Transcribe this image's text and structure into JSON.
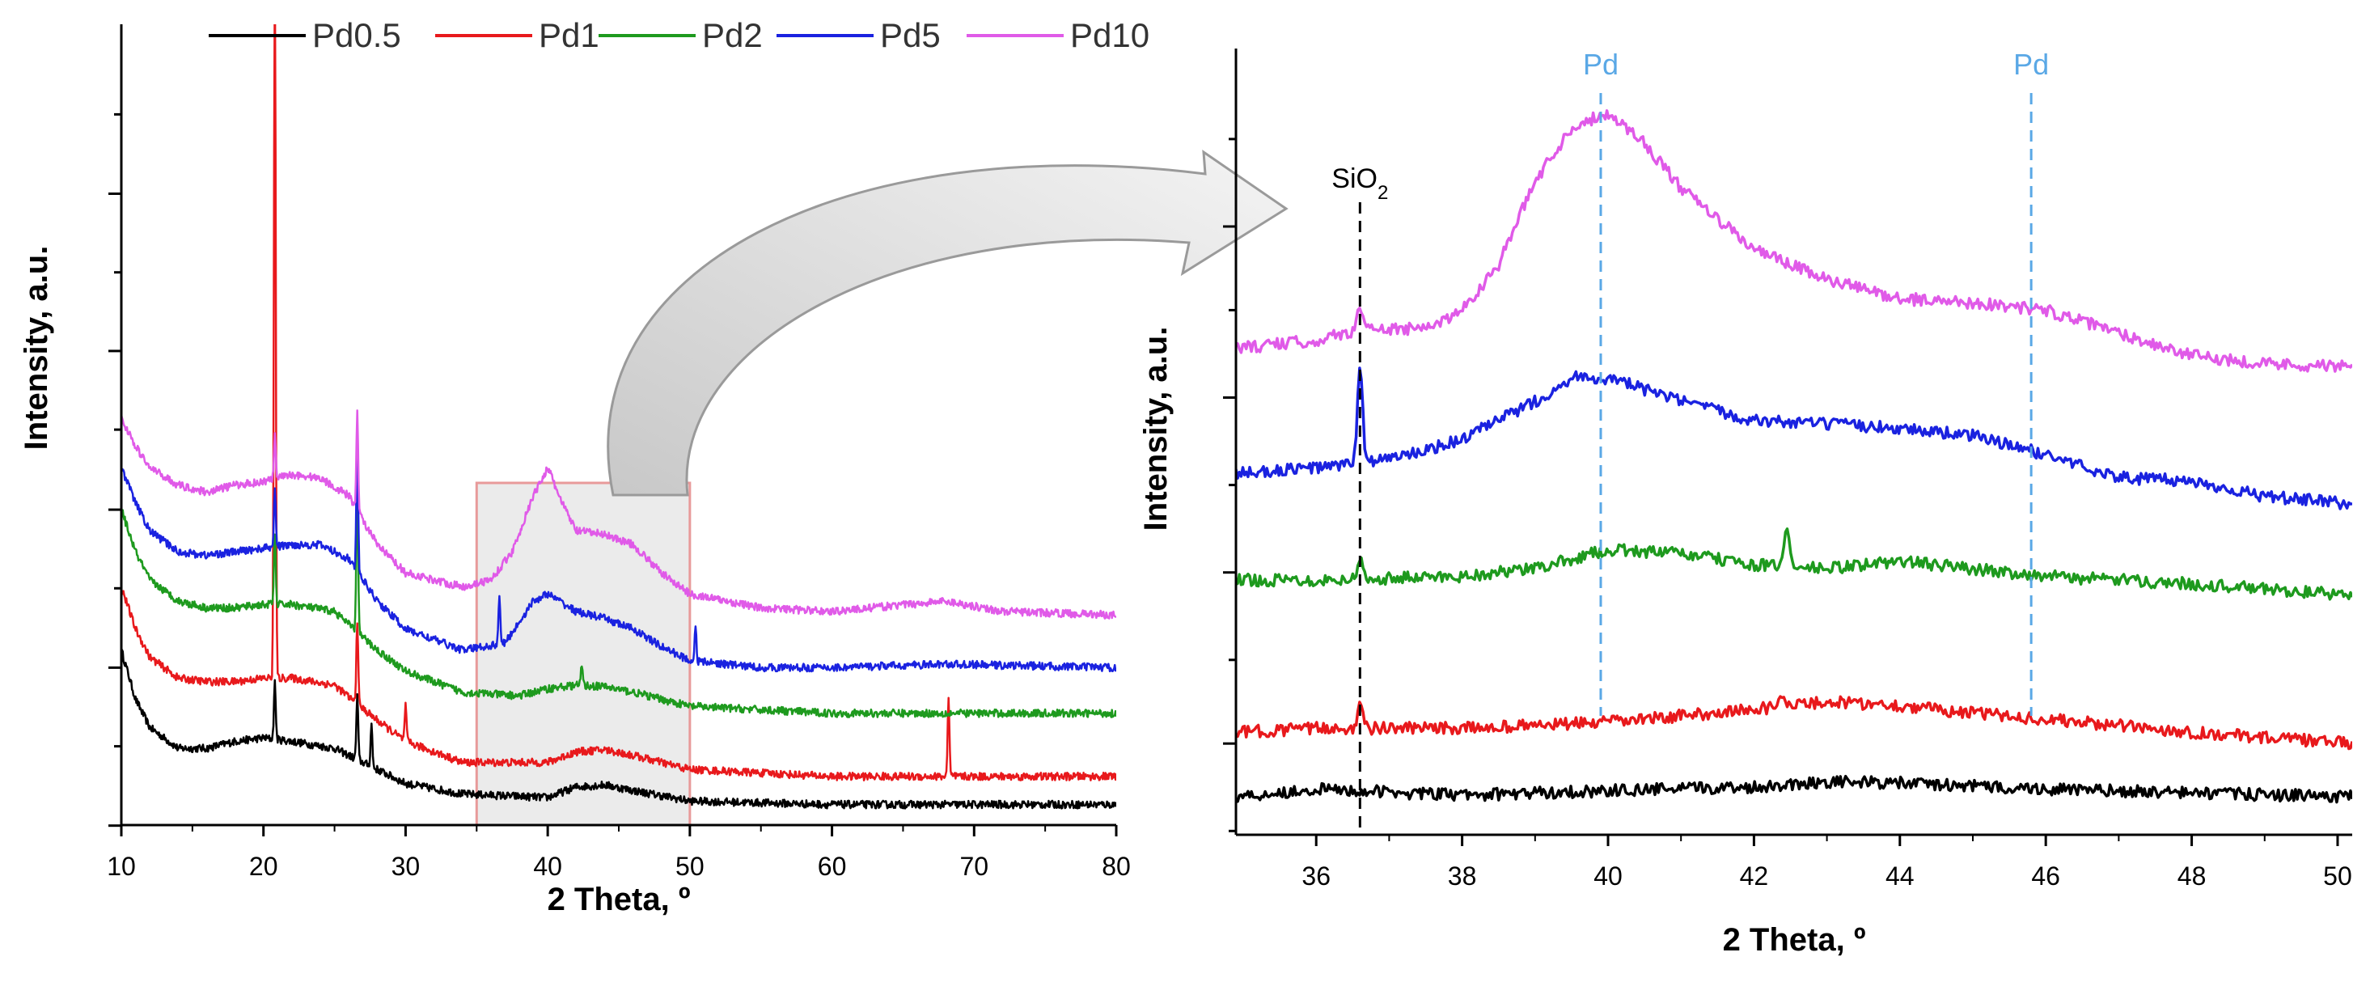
{
  "chart_data": [
    {
      "type": "line",
      "panel": "left",
      "xlabel": "2 Theta, º",
      "ylabel": "Intensity, a.u.",
      "xlim": [
        10,
        80
      ],
      "ylim": [
        0,
        100
      ],
      "xticks": [
        "10",
        "20",
        "30",
        "40",
        "50",
        "60",
        "70",
        "80"
      ],
      "y_tick_labels": "none",
      "legend": {
        "position": "top",
        "entries": [
          "Pd0.5",
          "Pd1",
          "Pd2",
          "Pd5",
          "Pd10"
        ]
      },
      "highlight_region": {
        "x": [
          35,
          50
        ],
        "description": "zoom region"
      },
      "series": [
        {
          "name": "Pd0.5",
          "color": "#000000",
          "baseline": 2,
          "points": [
            [
              10,
              24
            ],
            [
              11,
              17
            ],
            [
              12,
              13
            ],
            [
              14,
              10
            ],
            [
              16,
              10
            ],
            [
              18,
              11
            ],
            [
              20,
              11.5
            ],
            [
              22,
              11
            ],
            [
              25,
              10
            ],
            [
              28,
              7
            ],
            [
              30,
              5
            ],
            [
              34,
              3.5
            ],
            [
              40,
              3
            ],
            [
              42,
              4.5
            ],
            [
              44,
              4.8
            ],
            [
              46,
              4
            ],
            [
              50,
              2.5
            ],
            [
              60,
              2
            ],
            [
              80,
              2
            ]
          ],
          "peaks": [
            [
              20.8,
              8
            ],
            [
              26.6,
              9
            ],
            [
              27.6,
              6
            ]
          ]
        },
        {
          "name": "Pd1",
          "color": "#e8191c",
          "baseline": 6,
          "points": [
            [
              10,
              33
            ],
            [
              11,
              27
            ],
            [
              12,
              23
            ],
            [
              14,
              20
            ],
            [
              16,
              19.5
            ],
            [
              18,
              19.5
            ],
            [
              20,
              20
            ],
            [
              22,
              20
            ],
            [
              25,
              19
            ],
            [
              28,
              14
            ],
            [
              30,
              11
            ],
            [
              34,
              8
            ],
            [
              40,
              8
            ],
            [
              42,
              9.5
            ],
            [
              44,
              9.8
            ],
            [
              46,
              9
            ],
            [
              50,
              7
            ],
            [
              60,
              6
            ],
            [
              80,
              6
            ]
          ],
          "peaks": [
            [
              20.8,
              102
            ],
            [
              26.6,
              12
            ],
            [
              30,
              5
            ],
            [
              68.2,
              11
            ]
          ]
        },
        {
          "name": "Pd2",
          "color": "#1e9a1e",
          "baseline": 15,
          "points": [
            [
              10,
              44
            ],
            [
              11,
              38
            ],
            [
              12,
              34
            ],
            [
              14,
              31
            ],
            [
              16,
              30
            ],
            [
              18,
              30
            ],
            [
              20,
              30.5
            ],
            [
              22,
              30.5
            ],
            [
              25,
              29.5
            ],
            [
              28,
              24
            ],
            [
              30,
              21
            ],
            [
              34,
              18
            ],
            [
              38,
              17.5
            ],
            [
              40,
              18.5
            ],
            [
              42,
              19
            ],
            [
              44,
              18.8
            ],
            [
              46,
              18
            ],
            [
              50,
              16
            ],
            [
              60,
              15
            ],
            [
              80,
              15
            ]
          ],
          "peaks": [
            [
              20.8,
              10
            ],
            [
              26.6,
              22
            ],
            [
              42.4,
              3
            ]
          ]
        },
        {
          "name": "Pd5",
          "color": "#1a22e0",
          "baseline": 21,
          "points": [
            [
              10,
              50
            ],
            [
              11,
              45
            ],
            [
              12,
              41
            ],
            [
              14,
              38
            ],
            [
              16,
              37.5
            ],
            [
              18,
              38
            ],
            [
              20,
              38.5
            ],
            [
              22,
              39
            ],
            [
              24,
              39
            ],
            [
              26,
              37
            ],
            [
              28,
              31
            ],
            [
              30,
              27
            ],
            [
              34,
              24
            ],
            [
              37,
              25
            ],
            [
              39,
              31
            ],
            [
              40,
              32
            ],
            [
              42,
              29.5
            ],
            [
              44,
              28.5
            ],
            [
              46,
              27
            ],
            [
              48,
              24.5
            ],
            [
              50,
              22.5
            ],
            [
              55,
              21.5
            ],
            [
              60,
              21.5
            ],
            [
              68,
              22
            ],
            [
              80,
              21.5
            ]
          ],
          "peaks": [
            [
              20.8,
              8
            ],
            [
              26.6,
              18
            ],
            [
              36.6,
              7
            ],
            [
              50.4,
              5
            ]
          ]
        },
        {
          "name": "Pd10",
          "color": "#e05ae8",
          "baseline": 29,
          "points": [
            [
              10,
              57
            ],
            [
              11,
              53
            ],
            [
              12,
              50
            ],
            [
              14,
              47.5
            ],
            [
              16,
              46.5
            ],
            [
              18,
              47.5
            ],
            [
              20,
              48
            ],
            [
              22,
              49
            ],
            [
              24,
              48.5
            ],
            [
              26,
              46
            ],
            [
              28,
              39
            ],
            [
              30,
              35
            ],
            [
              34,
              33
            ],
            [
              36,
              34
            ],
            [
              37.5,
              38
            ],
            [
              39,
              46
            ],
            [
              40,
              50
            ],
            [
              41,
              45
            ],
            [
              42,
              41
            ],
            [
              44,
              40.5
            ],
            [
              46,
              39
            ],
            [
              48,
              35
            ],
            [
              50,
              32
            ],
            [
              55,
              30
            ],
            [
              60,
              29.5
            ],
            [
              68,
              31
            ],
            [
              72,
              29.5
            ],
            [
              80,
              29
            ]
          ],
          "peaks": [
            [
              20.8,
              6
            ],
            [
              26.6,
              14
            ]
          ]
        }
      ]
    },
    {
      "type": "line",
      "panel": "right",
      "xlabel": "2 Theta, º",
      "ylabel": "Intensity, a.u.",
      "xlim": [
        34.9,
        50.2
      ],
      "ylim": [
        0,
        100
      ],
      "xticks": [
        "36",
        "38",
        "40",
        "42",
        "44",
        "46",
        "48",
        "50"
      ],
      "y_tick_labels": "none",
      "annotations": [
        {
          "label_parts": [
            "SiO",
            "2"
          ],
          "x": 36.6,
          "style": "black dashed vertical line"
        },
        {
          "label": "Pd",
          "x": 39.9,
          "style": "light blue dashed vertical line"
        },
        {
          "label": "Pd",
          "x": 45.8,
          "style": "light blue dashed vertical line"
        }
      ],
      "series": [
        {
          "name": "Pd0.5",
          "color": "#000000",
          "points": [
            [
              34.9,
              5
            ],
            [
              36,
              6
            ],
            [
              38,
              5.2
            ],
            [
              40,
              5.8
            ],
            [
              42,
              6.3
            ],
            [
              43,
              7
            ],
            [
              44,
              6.8
            ],
            [
              46,
              6
            ],
            [
              48,
              5.5
            ],
            [
              50.2,
              5
            ]
          ],
          "peaks": []
        },
        {
          "name": "Pd1",
          "color": "#e8191c",
          "points": [
            [
              34.9,
              13.5
            ],
            [
              36,
              14
            ],
            [
              38,
              14
            ],
            [
              40,
              14.8
            ],
            [
              42,
              16.5
            ],
            [
              43,
              17.5
            ],
            [
              44,
              17
            ],
            [
              45,
              16
            ],
            [
              46,
              15.2
            ],
            [
              48,
              13.5
            ],
            [
              50.2,
              12
            ]
          ],
          "peaks": [
            [
              36.6,
              3
            ],
            [
              42.4,
              2
            ]
          ]
        },
        {
          "name": "Pd2",
          "color": "#1e9a1e",
          "points": [
            [
              34.9,
              33.5
            ],
            [
              36,
              33.5
            ],
            [
              38,
              34
            ],
            [
              39,
              35
            ],
            [
              40,
              37.5
            ],
            [
              41,
              37
            ],
            [
              42,
              35.5
            ],
            [
              43,
              35
            ],
            [
              44,
              36
            ],
            [
              46,
              34
            ],
            [
              48,
              33
            ],
            [
              50.2,
              31.5
            ]
          ],
          "peaks": [
            [
              36.6,
              2.5
            ],
            [
              42.45,
              5
            ]
          ]
        },
        {
          "name": "Pd5",
          "color": "#1a22e0",
          "points": [
            [
              34.9,
              47.5
            ],
            [
              36.3,
              48.5
            ],
            [
              37.3,
              50
            ],
            [
              38,
              52
            ],
            [
              39,
              57
            ],
            [
              39.6,
              60.5
            ],
            [
              40.2,
              59.5
            ],
            [
              41,
              57
            ],
            [
              42,
              54.5
            ],
            [
              43,
              54
            ],
            [
              44,
              53.5
            ],
            [
              45,
              52.5
            ],
            [
              46,
              50
            ],
            [
              47,
              47
            ],
            [
              48,
              46.5
            ],
            [
              49,
              44.5
            ],
            [
              50.2,
              43.5
            ]
          ],
          "peaks": [
            [
              36.6,
              12.5
            ]
          ]
        },
        {
          "name": "Pd10",
          "color": "#e05ae8",
          "points": [
            [
              34.9,
              64
            ],
            [
              36,
              65
            ],
            [
              36.6,
              66.5
            ],
            [
              37.5,
              66.5
            ],
            [
              38,
              69
            ],
            [
              38.5,
              75
            ],
            [
              39,
              86
            ],
            [
              39.5,
              93
            ],
            [
              40,
              95
            ],
            [
              40.5,
              91
            ],
            [
              41,
              85
            ],
            [
              42,
              77
            ],
            [
              43,
              73
            ],
            [
              44,
              70.5
            ],
            [
              45,
              70
            ],
            [
              46,
              69
            ],
            [
              47,
              66
            ],
            [
              48,
              63
            ],
            [
              49,
              62
            ],
            [
              50.2,
              61.5
            ]
          ],
          "peaks": [
            [
              36.6,
              3
            ]
          ]
        }
      ]
    }
  ]
}
